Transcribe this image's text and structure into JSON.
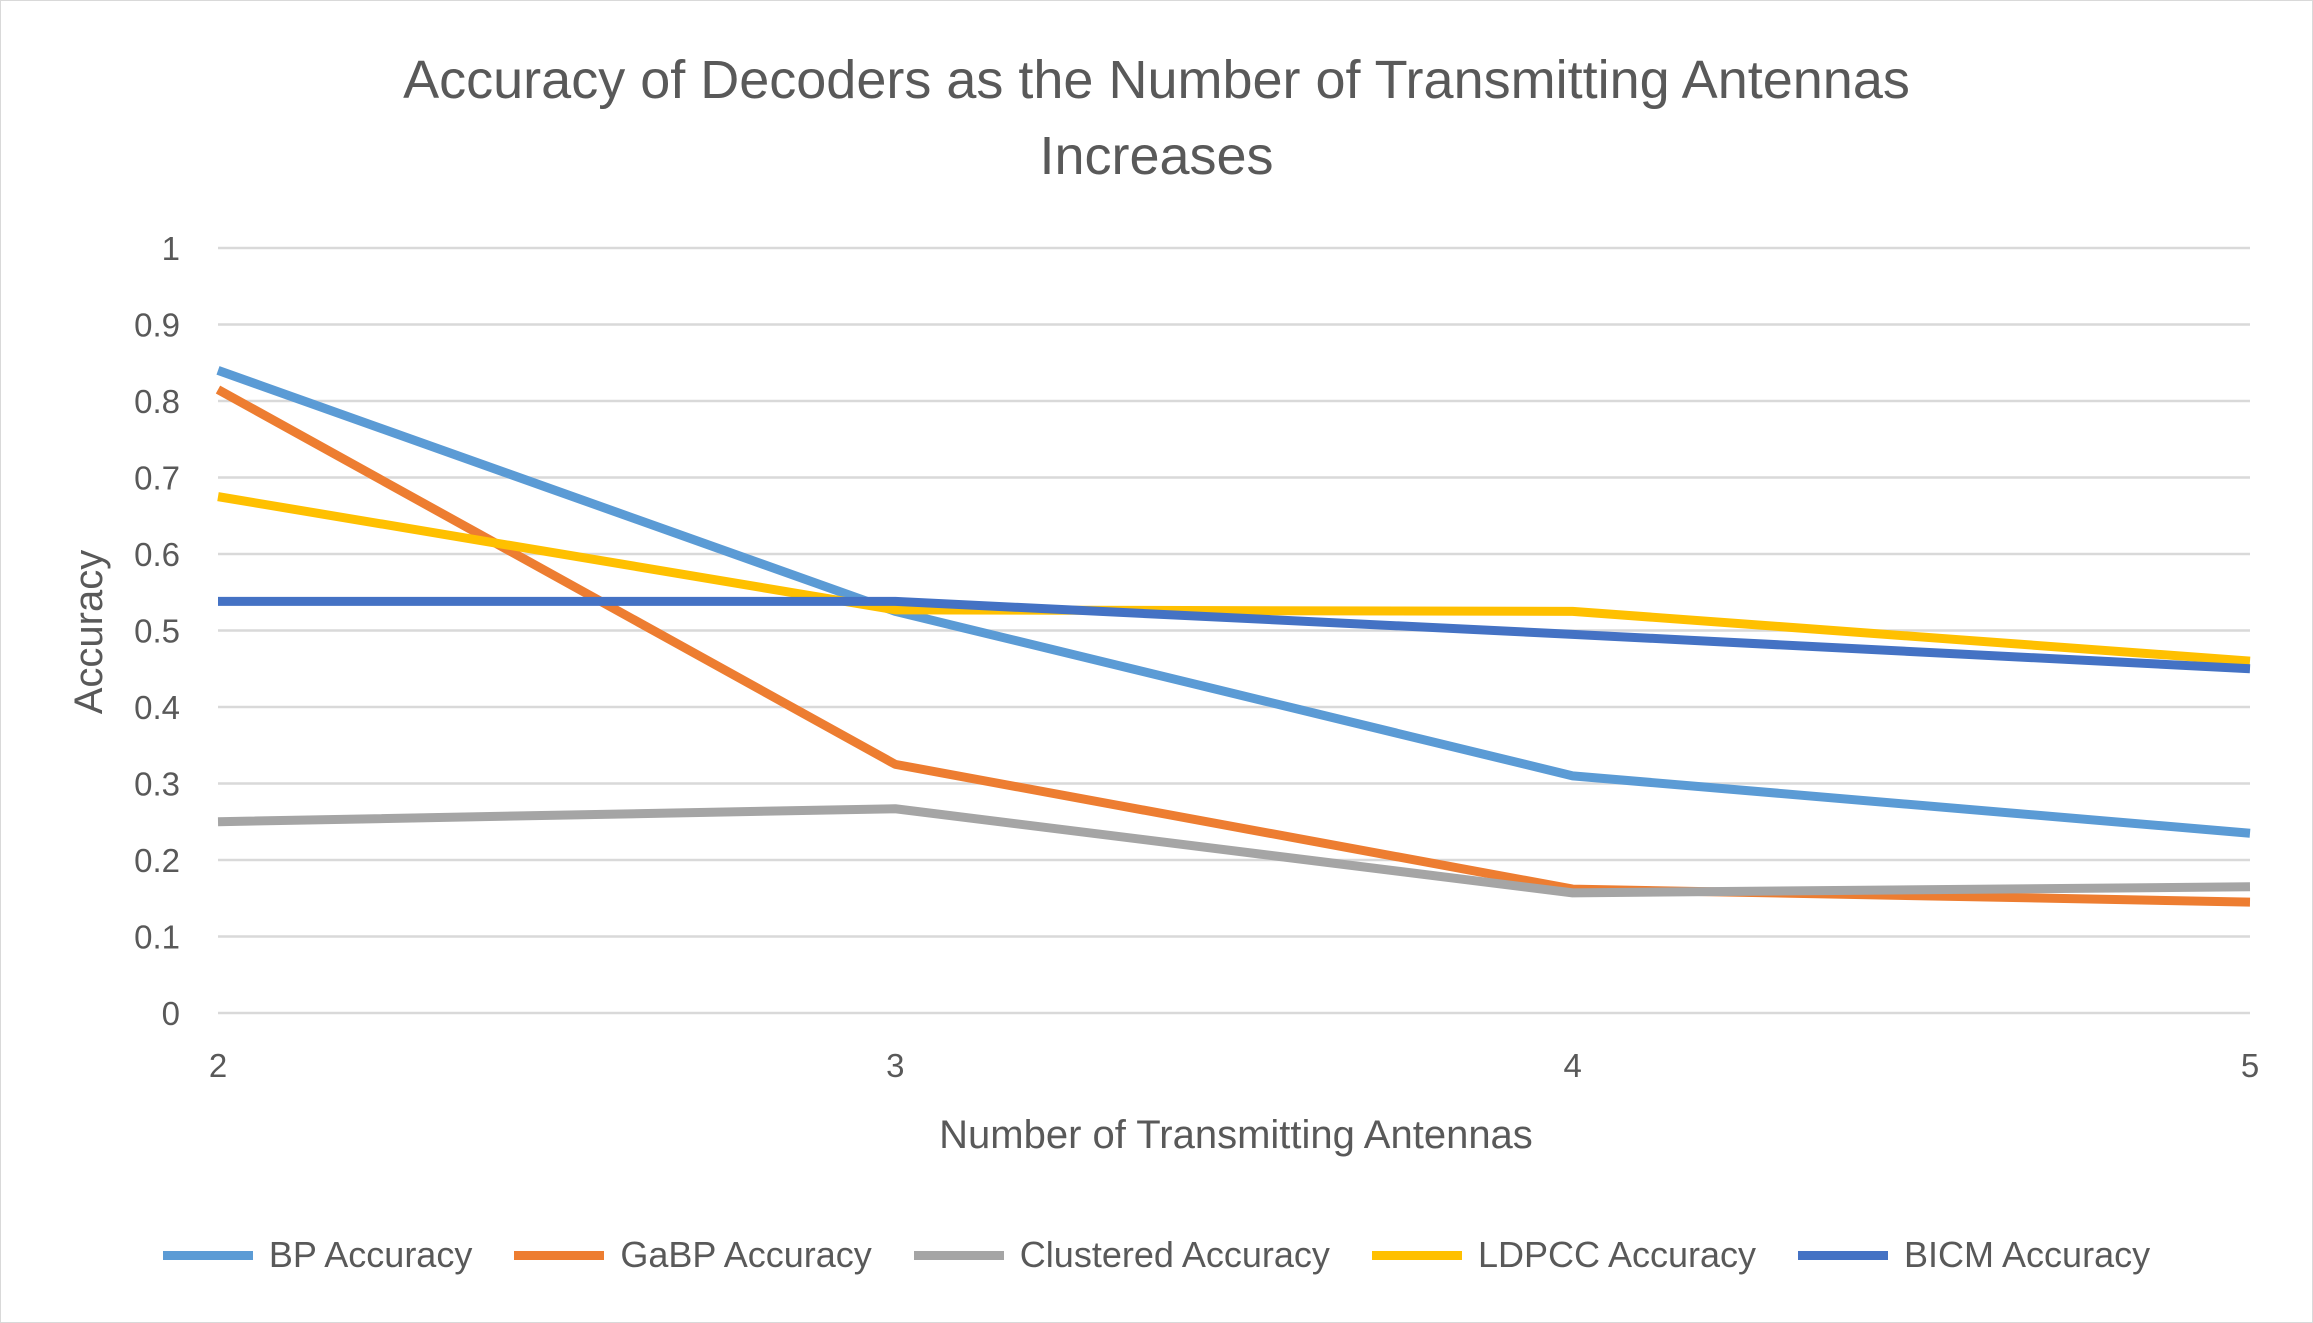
{
  "chart_data": {
    "type": "line",
    "title_line1": "Accuracy of Decoders as the Number of Transmitting Antennas",
    "title_line2": "Increases",
    "xlabel": "Number of Transmitting Antennas",
    "ylabel": "Accuracy",
    "x": [
      2,
      3,
      4,
      5
    ],
    "x_tick_labels": [
      "2",
      "3",
      "4",
      "5"
    ],
    "y_tick_labels": [
      "0",
      "0.1",
      "0.2",
      "0.3",
      "0.4",
      "0.5",
      "0.6",
      "0.7",
      "0.8",
      "0.9",
      "1"
    ],
    "ylim": [
      0,
      1
    ],
    "grid": "horizontal",
    "legend_position": "bottom",
    "series": [
      {
        "name": "BP Accuracy",
        "color": "#5b9bd5",
        "values": [
          0.84,
          0.525,
          0.31,
          0.235
        ]
      },
      {
        "name": "GaBP Accuracy",
        "color": "#ed7d31",
        "values": [
          0.815,
          0.325,
          0.162,
          0.145
        ]
      },
      {
        "name": "Clustered Accuracy",
        "color": "#a5a5a5",
        "values": [
          0.25,
          0.267,
          0.157,
          0.165
        ]
      },
      {
        "name": "LDPCC Accuracy",
        "color": "#ffc000",
        "values": [
          0.675,
          0.527,
          0.525,
          0.46
        ]
      },
      {
        "name": "BICM Accuracy",
        "color": "#4472c4",
        "values": [
          0.538,
          0.538,
          0.495,
          0.45
        ]
      }
    ]
  }
}
